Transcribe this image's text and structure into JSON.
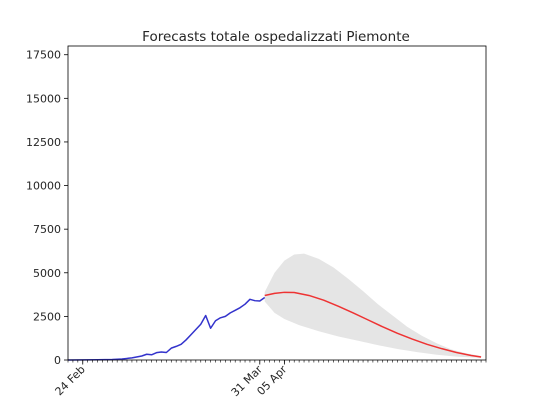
{
  "chart_data": {
    "type": "line",
    "title": "Forecasts totale ospedalizzati Piemonte",
    "xlabel": "",
    "ylabel": "",
    "x_axis": {
      "type": "date",
      "range": [
        "2020-02-21",
        "2020-05-16"
      ],
      "tick_labels": [
        {
          "date": "2020-02-24",
          "label": "24 Feb"
        },
        {
          "date": "2020-03-31",
          "label": "31 Mar"
        },
        {
          "date": "2020-04-05",
          "label": "05 Apr"
        }
      ]
    },
    "y_axis": {
      "range": [
        0,
        18000
      ],
      "ticks": [
        0,
        2500,
        5000,
        7500,
        10000,
        12500,
        15000,
        17500
      ],
      "tick_labels": [
        "0",
        "2500",
        "5000",
        "7500",
        "10000",
        "12500",
        "15000",
        "17500"
      ]
    },
    "grid": false,
    "legend": "none",
    "series": [
      {
        "role": "observed",
        "color": "#3333cc",
        "points": [
          [
            "2020-02-21",
            0
          ],
          [
            "2020-02-24",
            5
          ],
          [
            "2020-02-27",
            15
          ],
          [
            "2020-03-01",
            30
          ],
          [
            "2020-03-03",
            60
          ],
          [
            "2020-03-05",
            120
          ],
          [
            "2020-03-07",
            230
          ],
          [
            "2020-03-08",
            330
          ],
          [
            "2020-03-09",
            300
          ],
          [
            "2020-03-10",
            420
          ],
          [
            "2020-03-11",
            460
          ],
          [
            "2020-03-12",
            430
          ],
          [
            "2020-03-13",
            680
          ],
          [
            "2020-03-14",
            780
          ],
          [
            "2020-03-15",
            900
          ],
          [
            "2020-03-16",
            1150
          ],
          [
            "2020-03-17",
            1450
          ],
          [
            "2020-03-18",
            1750
          ],
          [
            "2020-03-19",
            2050
          ],
          [
            "2020-03-20",
            2550
          ],
          [
            "2020-03-21",
            1820
          ],
          [
            "2020-03-22",
            2250
          ],
          [
            "2020-03-23",
            2420
          ],
          [
            "2020-03-24",
            2500
          ],
          [
            "2020-03-25",
            2700
          ],
          [
            "2020-03-26",
            2850
          ],
          [
            "2020-03-27",
            3000
          ],
          [
            "2020-03-28",
            3200
          ],
          [
            "2020-03-29",
            3480
          ],
          [
            "2020-03-30",
            3400
          ],
          [
            "2020-03-31",
            3380
          ],
          [
            "2020-04-01",
            3580
          ]
        ]
      },
      {
        "role": "forecast",
        "color": "#ee3333",
        "points": [
          [
            "2020-04-01",
            3700
          ],
          [
            "2020-04-03",
            3820
          ],
          [
            "2020-04-05",
            3880
          ],
          [
            "2020-04-07",
            3870
          ],
          [
            "2020-04-10",
            3700
          ],
          [
            "2020-04-13",
            3430
          ],
          [
            "2020-04-16",
            3080
          ],
          [
            "2020-04-19",
            2700
          ],
          [
            "2020-04-22",
            2300
          ],
          [
            "2020-04-25",
            1900
          ],
          [
            "2020-04-28",
            1530
          ],
          [
            "2020-05-01",
            1200
          ],
          [
            "2020-05-04",
            900
          ],
          [
            "2020-05-07",
            650
          ],
          [
            "2020-05-10",
            430
          ],
          [
            "2020-05-13",
            260
          ],
          [
            "2020-05-15",
            170
          ]
        ]
      }
    ],
    "confidence_band": {
      "color": "#e5e5e5",
      "upper": [
        [
          "2020-04-01",
          3900
        ],
        [
          "2020-04-03",
          5000
        ],
        [
          "2020-04-05",
          5700
        ],
        [
          "2020-04-07",
          6050
        ],
        [
          "2020-04-09",
          6100
        ],
        [
          "2020-04-12",
          5800
        ],
        [
          "2020-04-15",
          5300
        ],
        [
          "2020-04-18",
          4650
        ],
        [
          "2020-04-21",
          3950
        ],
        [
          "2020-04-24",
          3200
        ],
        [
          "2020-04-27",
          2550
        ],
        [
          "2020-04-30",
          1900
        ],
        [
          "2020-05-03",
          1380
        ],
        [
          "2020-05-06",
          950
        ],
        [
          "2020-05-09",
          600
        ],
        [
          "2020-05-12",
          380
        ],
        [
          "2020-05-15",
          230
        ]
      ],
      "lower": [
        [
          "2020-04-01",
          3350
        ],
        [
          "2020-04-03",
          2700
        ],
        [
          "2020-04-05",
          2350
        ],
        [
          "2020-04-08",
          2000
        ],
        [
          "2020-04-12",
          1650
        ],
        [
          "2020-04-16",
          1350
        ],
        [
          "2020-04-20",
          1100
        ],
        [
          "2020-04-24",
          850
        ],
        [
          "2020-04-28",
          630
        ],
        [
          "2020-05-02",
          450
        ],
        [
          "2020-05-06",
          300
        ],
        [
          "2020-05-10",
          190
        ],
        [
          "2020-05-15",
          120
        ]
      ]
    }
  }
}
